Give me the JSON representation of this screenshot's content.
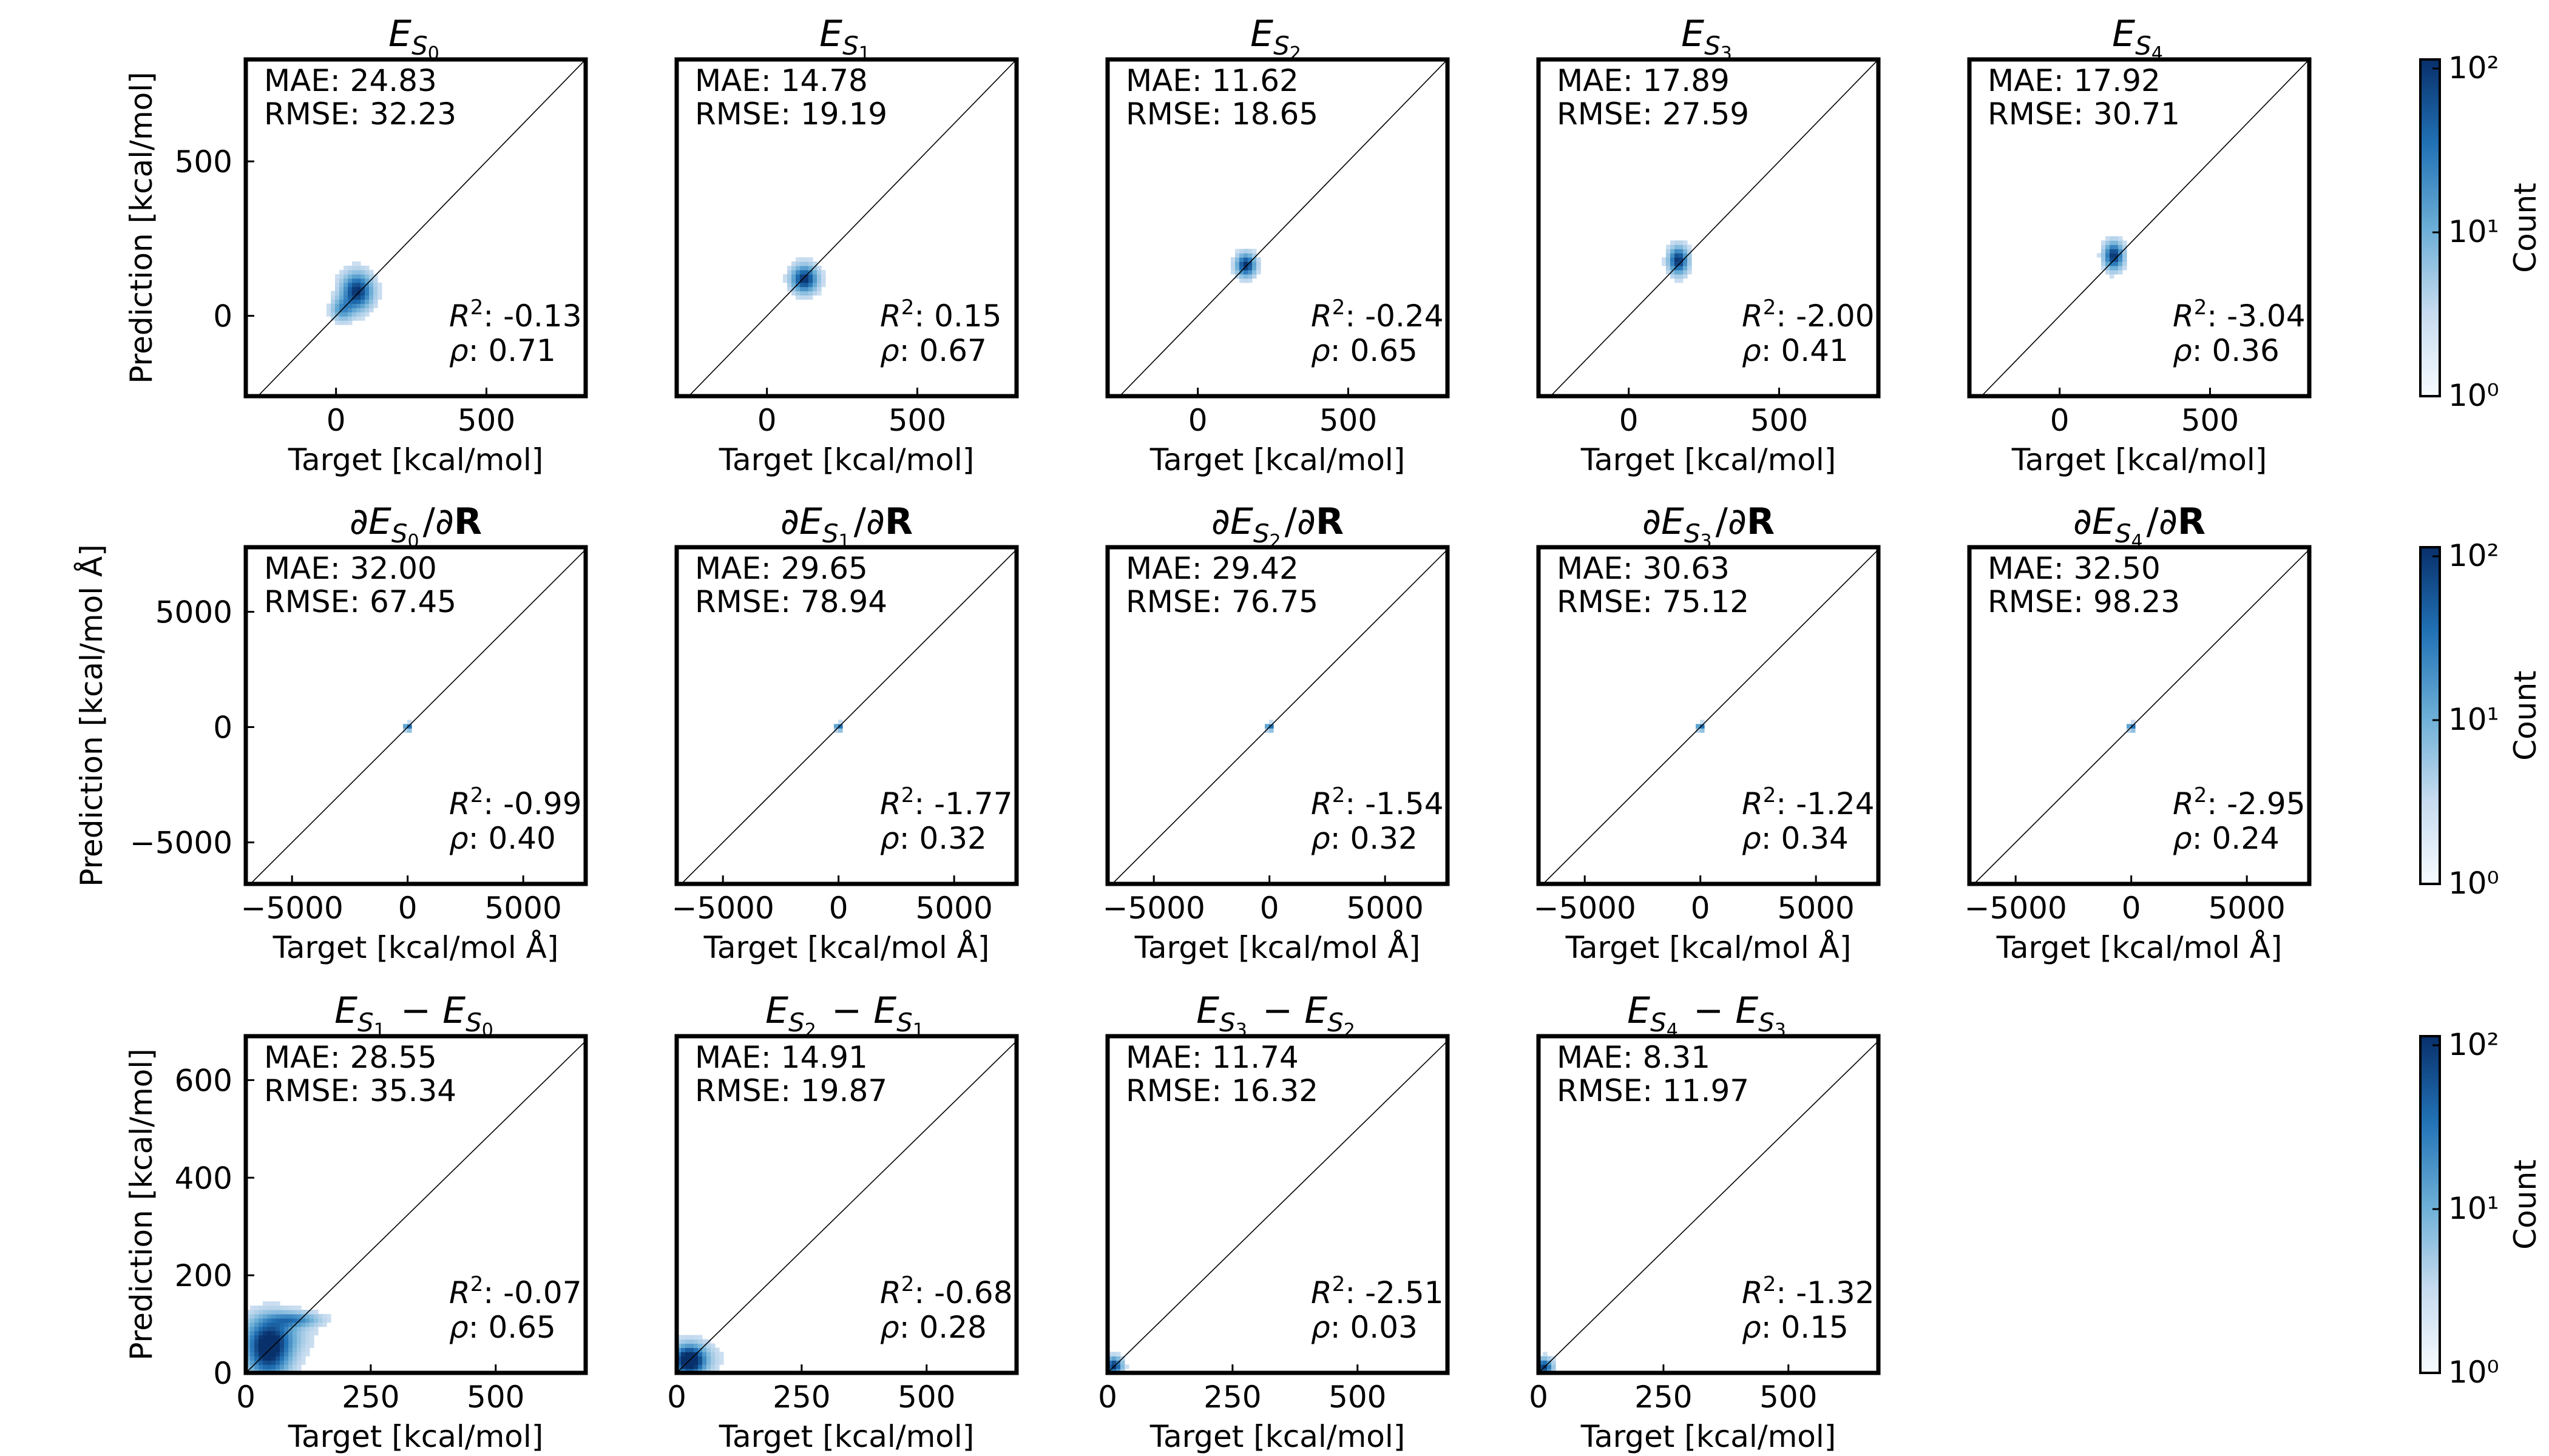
{
  "figure": {
    "colorbar_label": "Count",
    "colorbar_ticks": [
      "10⁰",
      "10¹",
      "10²"
    ],
    "rows": [
      {
        "xlabel": "Target [kcal/mol]",
        "ylabel": "Prediction [kcal/mol]"
      },
      {
        "xlabel": "Target [kcal/mol Å]",
        "ylabel": "Prediction [kcal/mol Å]"
      },
      {
        "xlabel": "Target [kcal/mol]",
        "ylabel": "Prediction [kcal/mol]"
      }
    ]
  },
  "chart_data": [
    {
      "type": "heatmap",
      "panel": "E_S0",
      "title": {
        "kind": "E",
        "i": "0"
      },
      "xlabel": "Target [kcal/mol]",
      "ylabel": "Prediction [kcal/mol]",
      "xlim": [
        -300,
        830
      ],
      "ylim": [
        -260,
        830
      ],
      "xticks": [
        0,
        500
      ],
      "yticks": [
        0,
        500
      ],
      "xticklabels": [
        "0",
        "500"
      ],
      "yticklabels": [
        "0",
        "500"
      ],
      "metrics": {
        "MAE": "24.83",
        "RMSE": "32.23",
        "R2": "-0.13",
        "rho": "0.71"
      },
      "density": [
        {
          "x": 70,
          "y": 80,
          "sx": 35,
          "sy": 40,
          "w": 1.0
        },
        {
          "x": 20,
          "y": 20,
          "sx": 25,
          "sy": 25,
          "w": 0.5
        }
      ]
    },
    {
      "type": "heatmap",
      "panel": "E_S1",
      "title": {
        "kind": "E",
        "i": "1"
      },
      "xlabel": "Target [kcal/mol]",
      "ylabel": "",
      "xlim": [
        -300,
        830
      ],
      "ylim": [
        -260,
        830
      ],
      "xticks": [
        0,
        500
      ],
      "yticks": [],
      "xticklabels": [
        "0",
        "500"
      ],
      "yticklabels": [],
      "metrics": {
        "MAE": "14.78",
        "RMSE": "19.19",
        "R2": "0.15",
        "rho": "0.67"
      },
      "density": [
        {
          "x": 125,
          "y": 120,
          "sx": 30,
          "sy": 30,
          "w": 1.0
        }
      ]
    },
    {
      "type": "heatmap",
      "panel": "E_S2",
      "title": {
        "kind": "E",
        "i": "2"
      },
      "xlabel": "Target [kcal/mol]",
      "ylabel": "",
      "xlim": [
        -300,
        830
      ],
      "ylim": [
        -260,
        830
      ],
      "xticks": [
        0,
        500
      ],
      "yticks": [],
      "xticklabels": [
        "0",
        "500"
      ],
      "yticklabels": [],
      "metrics": {
        "MAE": "11.62",
        "RMSE": "18.65",
        "R2": "-0.24",
        "rho": "0.65"
      },
      "density": [
        {
          "x": 160,
          "y": 165,
          "sx": 22,
          "sy": 25,
          "w": 1.0
        }
      ]
    },
    {
      "type": "heatmap",
      "panel": "E_S3",
      "title": {
        "kind": "E",
        "i": "3"
      },
      "xlabel": "Target [kcal/mol]",
      "ylabel": "",
      "xlim": [
        -300,
        830
      ],
      "ylim": [
        -260,
        830
      ],
      "xticks": [
        0,
        500
      ],
      "yticks": [],
      "xticklabels": [
        "0",
        "500"
      ],
      "yticklabels": [],
      "metrics": {
        "MAE": "17.89",
        "RMSE": "27.59",
        "R2": "-2.00",
        "rho": "0.41"
      },
      "density": [
        {
          "x": 165,
          "y": 180,
          "sx": 22,
          "sy": 30,
          "w": 1.0
        }
      ]
    },
    {
      "type": "heatmap",
      "panel": "E_S4",
      "title": {
        "kind": "E",
        "i": "4"
      },
      "xlabel": "Target [kcal/mol]",
      "ylabel": "",
      "xlim": [
        -300,
        830
      ],
      "ylim": [
        -260,
        830
      ],
      "xticks": [
        0,
        500
      ],
      "yticks": [],
      "xticklabels": [
        "0",
        "500"
      ],
      "yticklabels": [],
      "metrics": {
        "MAE": "17.92",
        "RMSE": "30.71",
        "R2": "-3.04",
        "rho": "0.36"
      },
      "density": [
        {
          "x": 180,
          "y": 195,
          "sx": 22,
          "sy": 30,
          "w": 1.0
        }
      ]
    },
    {
      "type": "heatmap",
      "panel": "dE_S0",
      "title": {
        "kind": "dE",
        "i": "0"
      },
      "xlabel": "Target [kcal/mol Å]",
      "ylabel": "Prediction [kcal/mol Å]",
      "xlim": [
        -7000,
        7700
      ],
      "ylim": [
        -6800,
        7800
      ],
      "xticks": [
        -5000,
        0,
        5000
      ],
      "yticks": [
        -5000,
        0,
        5000
      ],
      "xticklabels": [
        "−5000",
        "0",
        "5000"
      ],
      "yticklabels": [
        "−5000",
        "0",
        "5000"
      ],
      "metrics": {
        "MAE": "32.00",
        "RMSE": "67.45",
        "R2": "-0.99",
        "rho": "0.40"
      },
      "density": [
        {
          "x": 0,
          "y": 0,
          "sx": 90,
          "sy": 90,
          "w": 1.0
        },
        {
          "x": 0,
          "y": 0,
          "sx": 60,
          "sy": 900,
          "w": 0.15
        }
      ]
    },
    {
      "type": "heatmap",
      "panel": "dE_S1",
      "title": {
        "kind": "dE",
        "i": "1"
      },
      "xlabel": "Target [kcal/mol Å]",
      "ylabel": "",
      "xlim": [
        -7000,
        7700
      ],
      "ylim": [
        -6800,
        7800
      ],
      "xticks": [
        -5000,
        0,
        5000
      ],
      "yticks": [],
      "xticklabels": [
        "−5000",
        "0",
        "5000"
      ],
      "yticklabels": [],
      "metrics": {
        "MAE": "29.65",
        "RMSE": "78.94",
        "R2": "-1.77",
        "rho": "0.32"
      },
      "density": [
        {
          "x": 0,
          "y": 0,
          "sx": 90,
          "sy": 90,
          "w": 1.0
        },
        {
          "x": 0,
          "y": 0,
          "sx": 60,
          "sy": 1000,
          "w": 0.15
        }
      ]
    },
    {
      "type": "heatmap",
      "panel": "dE_S2",
      "title": {
        "kind": "dE",
        "i": "2"
      },
      "xlabel": "Target [kcal/mol Å]",
      "ylabel": "",
      "xlim": [
        -7000,
        7700
      ],
      "ylim": [
        -6800,
        7800
      ],
      "xticks": [
        -5000,
        0,
        5000
      ],
      "yticks": [],
      "xticklabels": [
        "−5000",
        "0",
        "5000"
      ],
      "yticklabels": [],
      "metrics": {
        "MAE": "29.42",
        "RMSE": "76.75",
        "R2": "-1.54",
        "rho": "0.32"
      },
      "density": [
        {
          "x": 0,
          "y": 0,
          "sx": 90,
          "sy": 90,
          "w": 1.0
        },
        {
          "x": 0,
          "y": 0,
          "sx": 60,
          "sy": 1000,
          "w": 0.15
        }
      ]
    },
    {
      "type": "heatmap",
      "panel": "dE_S3",
      "title": {
        "kind": "dE",
        "i": "3"
      },
      "xlabel": "Target [kcal/mol Å]",
      "ylabel": "",
      "xlim": [
        -7000,
        7700
      ],
      "ylim": [
        -6800,
        7800
      ],
      "xticks": [
        -5000,
        0,
        5000
      ],
      "yticks": [],
      "xticklabels": [
        "−5000",
        "0",
        "5000"
      ],
      "yticklabels": [],
      "metrics": {
        "MAE": "30.63",
        "RMSE": "75.12",
        "R2": "-1.24",
        "rho": "0.34"
      },
      "density": [
        {
          "x": 0,
          "y": 0,
          "sx": 90,
          "sy": 90,
          "w": 1.0
        },
        {
          "x": 0,
          "y": 0,
          "sx": 60,
          "sy": 1000,
          "w": 0.15
        }
      ]
    },
    {
      "type": "heatmap",
      "panel": "dE_S4",
      "title": {
        "kind": "dE",
        "i": "4"
      },
      "xlabel": "Target [kcal/mol Å]",
      "ylabel": "",
      "xlim": [
        -7000,
        7700
      ],
      "ylim": [
        -6800,
        7800
      ],
      "xticks": [
        -5000,
        0,
        5000
      ],
      "yticks": [],
      "xticklabels": [
        "−5000",
        "0",
        "5000"
      ],
      "yticklabels": [],
      "metrics": {
        "MAE": "32.50",
        "RMSE": "98.23",
        "R2": "-2.95",
        "rho": "0.24"
      },
      "density": [
        {
          "x": 0,
          "y": 0,
          "sx": 90,
          "sy": 90,
          "w": 1.0
        },
        {
          "x": 0,
          "y": 0,
          "sx": 60,
          "sy": 1000,
          "w": 0.15
        }
      ]
    },
    {
      "type": "heatmap",
      "panel": "gap_10",
      "title": {
        "kind": "gap",
        "a": "1",
        "b": "0"
      },
      "xlabel": "Target [kcal/mol]",
      "ylabel": "Prediction [kcal/mol]",
      "xlim": [
        0,
        680
      ],
      "ylim": [
        0,
        690
      ],
      "xticks": [
        0,
        250,
        500
      ],
      "yticks": [
        0,
        200,
        400,
        600
      ],
      "xticklabels": [
        "0",
        "250",
        "500"
      ],
      "yticklabels": [
        "0",
        "200",
        "400",
        "600"
      ],
      "metrics": {
        "MAE": "28.55",
        "RMSE": "35.34",
        "R2": "-0.07",
        "rho": "0.65"
      },
      "density": [
        {
          "x": 45,
          "y": 45,
          "sx": 30,
          "sy": 40,
          "w": 1.0
        },
        {
          "x": 100,
          "y": 110,
          "sx": 35,
          "sy": 10,
          "w": 0.5
        },
        {
          "x": 60,
          "y": 80,
          "sx": 45,
          "sy": 30,
          "w": 0.35
        }
      ]
    },
    {
      "type": "heatmap",
      "panel": "gap_21",
      "title": {
        "kind": "gap",
        "a": "2",
        "b": "1"
      },
      "xlabel": "Target [kcal/mol]",
      "ylabel": "",
      "xlim": [
        0,
        680
      ],
      "ylim": [
        0,
        690
      ],
      "xticks": [
        0,
        250,
        500
      ],
      "yticks": [],
      "xticklabels": [
        "0",
        "250",
        "500"
      ],
      "yticklabels": [],
      "metrics": {
        "MAE": "14.91",
        "RMSE": "19.87",
        "R2": "-0.68",
        "rho": "0.28"
      },
      "density": [
        {
          "x": 25,
          "y": 25,
          "sx": 20,
          "sy": 20,
          "w": 1.0
        },
        {
          "x": 30,
          "y": 30,
          "sx": 35,
          "sy": 25,
          "w": 0.35
        }
      ]
    },
    {
      "type": "heatmap",
      "panel": "gap_32",
      "title": {
        "kind": "gap",
        "a": "3",
        "b": "2"
      },
      "xlabel": "Target [kcal/mol]",
      "ylabel": "",
      "xlim": [
        0,
        680
      ],
      "ylim": [
        0,
        690
      ],
      "xticks": [
        0,
        250,
        500
      ],
      "yticks": [],
      "xticklabels": [
        "0",
        "250",
        "500"
      ],
      "yticklabels": [],
      "metrics": {
        "MAE": "11.74",
        "RMSE": "16.32",
        "R2": "-2.51",
        "rho": "0.03"
      },
      "density": [
        {
          "x": 12,
          "y": 15,
          "sx": 12,
          "sy": 12,
          "w": 1.0
        }
      ]
    },
    {
      "type": "heatmap",
      "panel": "gap_43",
      "title": {
        "kind": "gap",
        "a": "4",
        "b": "3"
      },
      "xlabel": "Target [kcal/mol]",
      "ylabel": "",
      "xlim": [
        0,
        680
      ],
      "ylim": [
        0,
        690
      ],
      "xticks": [
        0,
        250,
        500
      ],
      "yticks": [],
      "xticklabels": [
        "0",
        "250",
        "500"
      ],
      "yticklabels": [],
      "metrics": {
        "MAE": "8.31",
        "RMSE": "11.97",
        "R2": "-1.32",
        "rho": "0.15"
      },
      "density": [
        {
          "x": 10,
          "y": 12,
          "sx": 12,
          "sy": 12,
          "w": 1.0
        }
      ]
    }
  ]
}
